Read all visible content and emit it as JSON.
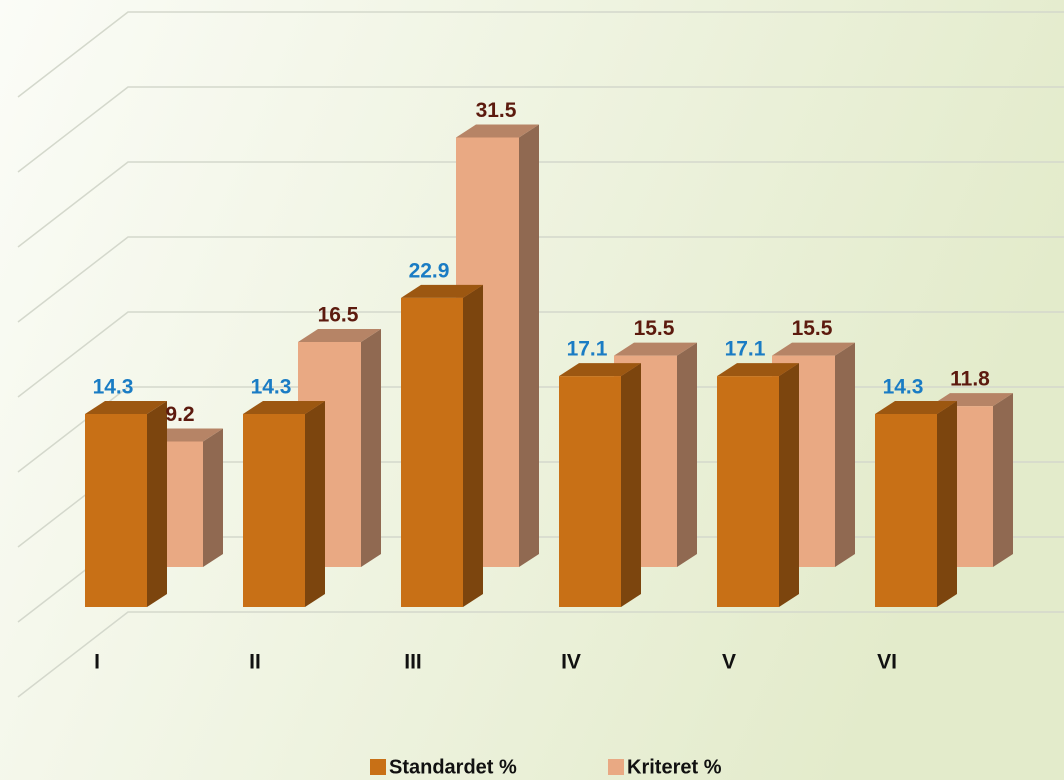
{
  "chart_data": {
    "type": "bar3d",
    "categories": [
      "I",
      "II",
      "III",
      "IV",
      "V",
      "VI"
    ],
    "series": [
      {
        "name": "Standardet %",
        "color": "#c87016",
        "values": [
          14.3,
          14.3,
          22.9,
          17.1,
          17.1,
          14.3
        ]
      },
      {
        "name": "Kriteret %",
        "color": "#e9a983",
        "values": [
          9.2,
          16.5,
          31.5,
          15.5,
          15.5,
          11.8
        ]
      }
    ],
    "label_colors": [
      "#1a7cc4",
      "#5c1a0e"
    ],
    "ylim": [
      0,
      40
    ],
    "yticks": [
      0,
      5,
      10,
      15,
      20,
      25,
      30,
      35,
      40
    ],
    "grid": true
  }
}
